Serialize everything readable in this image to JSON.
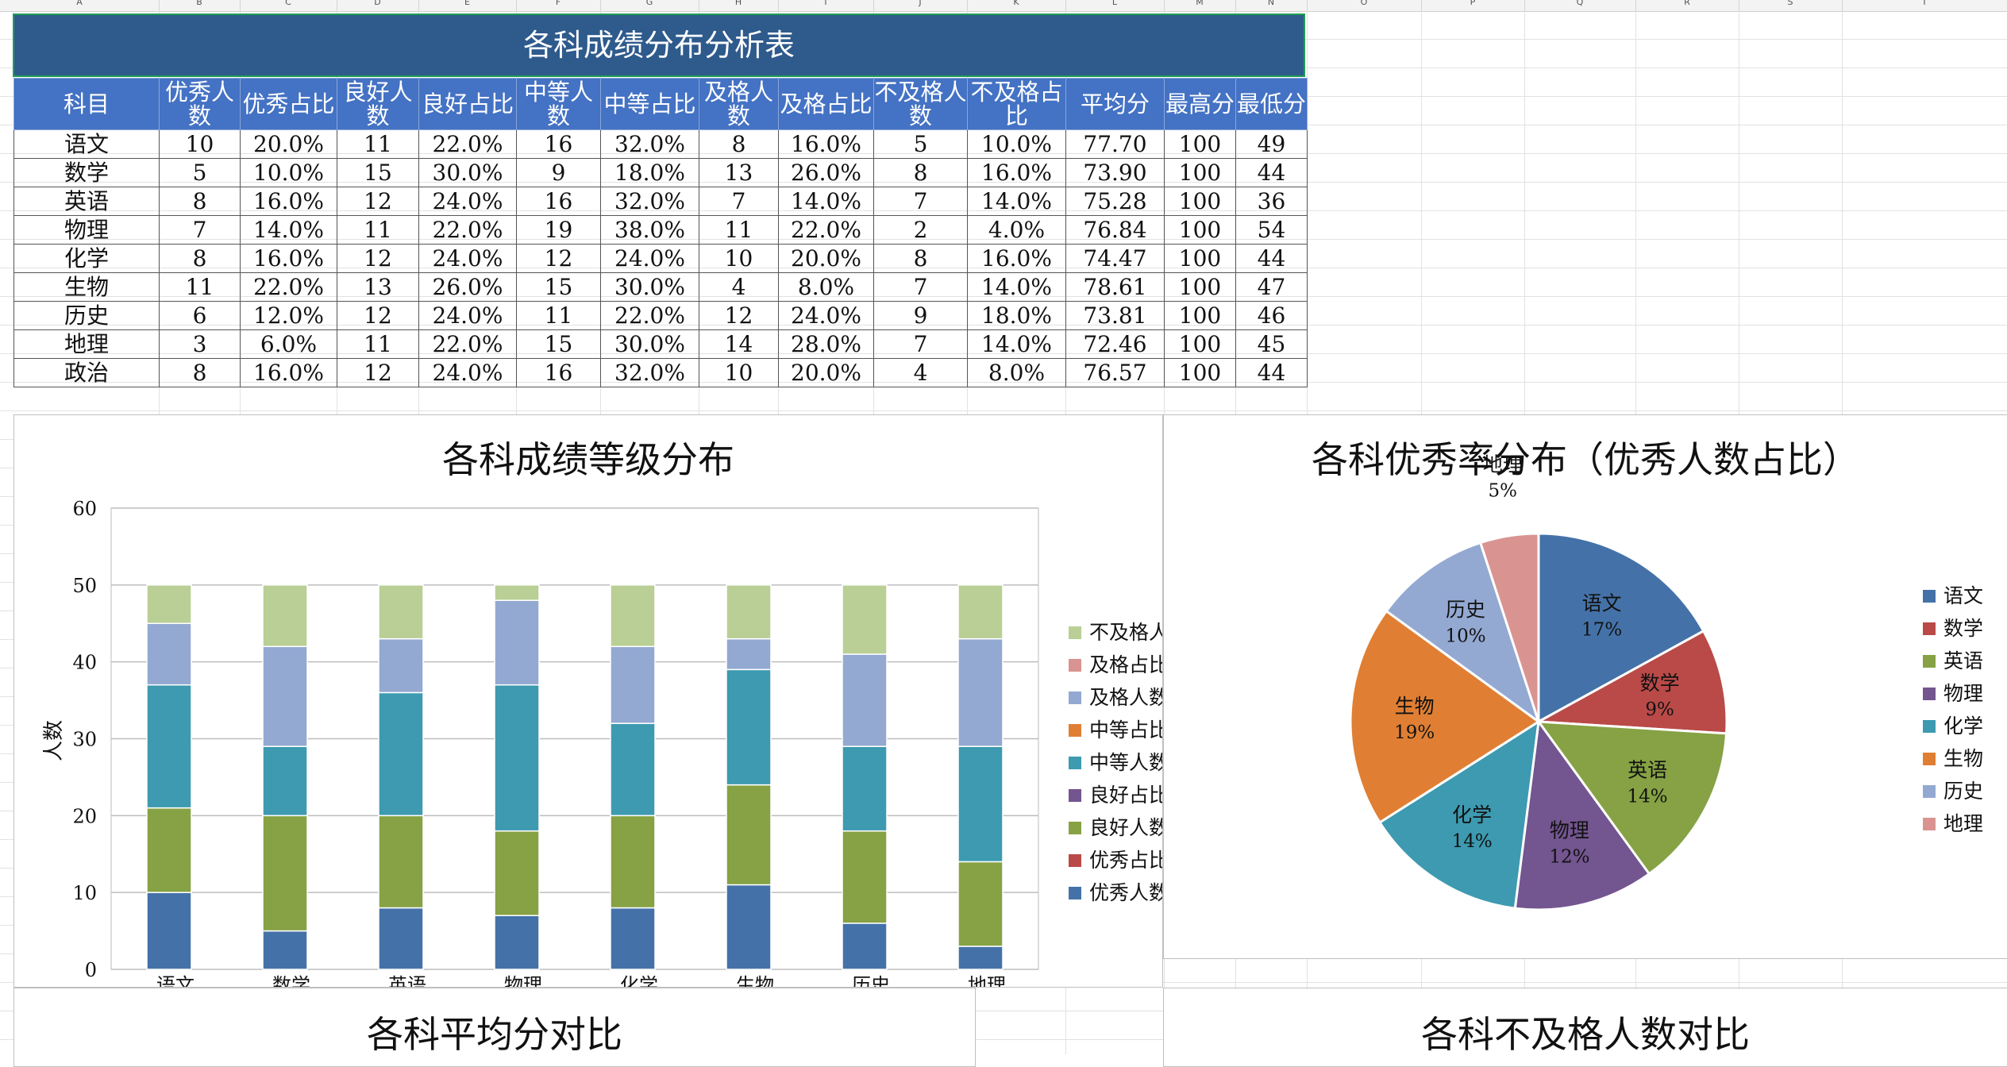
{
  "column_letters": [
    "A",
    "B",
    "C",
    "D",
    "E",
    "F",
    "G",
    "H",
    "I",
    "J",
    "K",
    "L",
    "M",
    "N",
    "O",
    "P",
    "Q",
    "R",
    "S",
    "T"
  ],
  "table": {
    "title": "各科成绩分布分析表",
    "headers": [
      "科目",
      "优秀人数",
      "优秀占比",
      "良好人数",
      "良好占比",
      "中等人数",
      "中等占比",
      "及格人数",
      "及格占比",
      "不及格人数",
      "不及格占比",
      "平均分",
      "最高分",
      "最低分"
    ],
    "rows": [
      [
        "语文",
        "10",
        "20.0%",
        "11",
        "22.0%",
        "16",
        "32.0%",
        "8",
        "16.0%",
        "5",
        "10.0%",
        "77.70",
        "100",
        "49"
      ],
      [
        "数学",
        "5",
        "10.0%",
        "15",
        "30.0%",
        "9",
        "18.0%",
        "13",
        "26.0%",
        "8",
        "16.0%",
        "73.90",
        "100",
        "44"
      ],
      [
        "英语",
        "8",
        "16.0%",
        "12",
        "24.0%",
        "16",
        "32.0%",
        "7",
        "14.0%",
        "7",
        "14.0%",
        "75.28",
        "100",
        "36"
      ],
      [
        "物理",
        "7",
        "14.0%",
        "11",
        "22.0%",
        "19",
        "38.0%",
        "11",
        "22.0%",
        "2",
        "4.0%",
        "76.84",
        "100",
        "54"
      ],
      [
        "化学",
        "8",
        "16.0%",
        "12",
        "24.0%",
        "12",
        "24.0%",
        "10",
        "20.0%",
        "8",
        "16.0%",
        "74.47",
        "100",
        "44"
      ],
      [
        "生物",
        "11",
        "22.0%",
        "13",
        "26.0%",
        "15",
        "30.0%",
        "4",
        "8.0%",
        "7",
        "14.0%",
        "78.61",
        "100",
        "47"
      ],
      [
        "历史",
        "6",
        "12.0%",
        "12",
        "24.0%",
        "11",
        "22.0%",
        "12",
        "24.0%",
        "9",
        "18.0%",
        "73.81",
        "100",
        "46"
      ],
      [
        "地理",
        "3",
        "6.0%",
        "11",
        "22.0%",
        "15",
        "30.0%",
        "14",
        "28.0%",
        "7",
        "14.0%",
        "72.46",
        "100",
        "45"
      ],
      [
        "政治",
        "8",
        "16.0%",
        "12",
        "24.0%",
        "16",
        "32.0%",
        "10",
        "20.0%",
        "4",
        "8.0%",
        "76.57",
        "100",
        "44"
      ]
    ]
  },
  "charts": {
    "bar": {
      "title": "各科成绩等级分布",
      "ylabel": "人数",
      "legend_labels": [
        "不及格人",
        "及格占比",
        "及格人数",
        "中等占比",
        "中等人数",
        "良好占比",
        "良好人数",
        "优秀占比",
        "优秀人数"
      ]
    },
    "pie": {
      "title": "各科优秀率分布（优秀人数占比）",
      "legend_labels": [
        "语文",
        "数学",
        "英语",
        "物理",
        "化学",
        "生物",
        "历史",
        "地理"
      ]
    },
    "avg": {
      "title": "各科平均分对比"
    },
    "fail": {
      "title": "各科不及格人数对比"
    }
  },
  "chart_data": [
    {
      "type": "bar",
      "stacked": true,
      "title": "各科成绩等级分布",
      "ylabel": "人数",
      "ylim": [
        0,
        60
      ],
      "yticks": [
        0,
        10,
        20,
        30,
        40,
        50,
        60
      ],
      "categories": [
        "语文",
        "数学",
        "英语",
        "物理",
        "化学",
        "生物",
        "历史",
        "地理"
      ],
      "legend_position": "right",
      "series": [
        {
          "name": "优秀人数",
          "color": "#4472a8",
          "values": [
            10,
            5,
            8,
            7,
            8,
            11,
            6,
            3
          ]
        },
        {
          "name": "优秀占比",
          "color": "#b94a48",
          "values": [
            0,
            0,
            0,
            0,
            0,
            0,
            0,
            0
          ]
        },
        {
          "name": "良好人数",
          "color": "#86a244",
          "values": [
            11,
            15,
            12,
            11,
            12,
            13,
            12,
            11
          ]
        },
        {
          "name": "良好占比",
          "color": "#73558f",
          "values": [
            0,
            0,
            0,
            0,
            0,
            0,
            0,
            0
          ]
        },
        {
          "name": "中等人数",
          "color": "#3d9ab0",
          "values": [
            16,
            9,
            16,
            19,
            12,
            15,
            11,
            15
          ]
        },
        {
          "name": "中等占比",
          "color": "#e07f33",
          "values": [
            0,
            0,
            0,
            0,
            0,
            0,
            0,
            0
          ]
        },
        {
          "name": "及格人数",
          "color": "#93a9d2",
          "values": [
            8,
            13,
            7,
            11,
            10,
            4,
            12,
            14
          ]
        },
        {
          "name": "及格占比",
          "color": "#d99491",
          "values": [
            0,
            0,
            0,
            0,
            0,
            0,
            0,
            0
          ]
        },
        {
          "name": "不及格人",
          "color": "#b9cf95",
          "values": [
            5,
            8,
            7,
            2,
            8,
            7,
            9,
            7
          ]
        }
      ]
    },
    {
      "type": "pie",
      "title": "各科优秀率分布（优秀人数占比）",
      "legend_position": "right",
      "slices": [
        {
          "label": "语文",
          "value": 17,
          "pct": "17%",
          "color": "#4472a8"
        },
        {
          "label": "数学",
          "value": 9,
          "pct": "9%",
          "color": "#b94a48"
        },
        {
          "label": "英语",
          "value": 14,
          "pct": "14%",
          "color": "#86a244"
        },
        {
          "label": "物理",
          "value": 12,
          "pct": "12%",
          "color": "#73558f"
        },
        {
          "label": "化学",
          "value": 14,
          "pct": "14%",
          "color": "#3d9ab0"
        },
        {
          "label": "生物",
          "value": 19,
          "pct": "19%",
          "color": "#e07f33"
        },
        {
          "label": "历史",
          "value": 10,
          "pct": "10%",
          "color": "#93a9d2"
        },
        {
          "label": "地理",
          "value": 5,
          "pct": "5%",
          "color": "#d99491"
        }
      ]
    }
  ]
}
